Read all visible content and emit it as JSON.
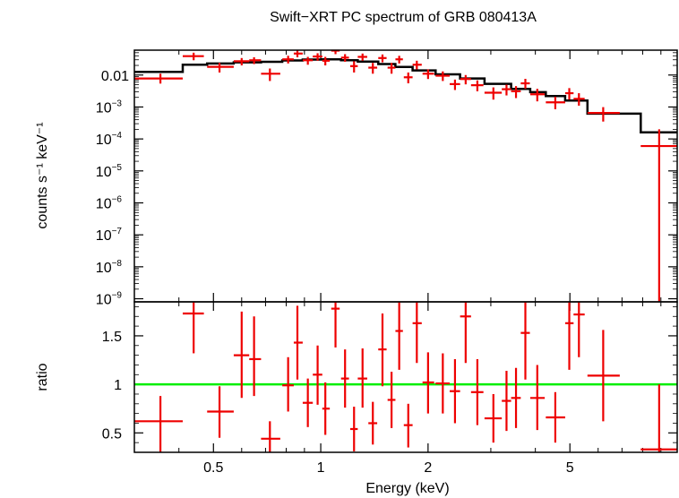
{
  "chart_data": [
    {
      "type": "scatter",
      "title": "Swift−XRT PC spectrum of GRB 080413A",
      "xlabel": "Energy (keV)",
      "ylabel": "counts s⁻¹ keV⁻¹",
      "xscale": "log",
      "yscale": "log",
      "xlim": [
        0.3,
        10
      ],
      "ylim": [
        8e-10,
        0.06
      ],
      "yticks": [
        {
          "v": 0.01,
          "label": "0.01"
        },
        {
          "v": 0.001,
          "b": "10",
          "e": "−3"
        },
        {
          "v": 0.0001,
          "b": "10",
          "e": "−4"
        },
        {
          "v": 1e-05,
          "b": "10",
          "e": "−5"
        },
        {
          "v": 1e-06,
          "b": "10",
          "e": "−6"
        },
        {
          "v": 1e-07,
          "b": "10",
          "e": "−7"
        },
        {
          "v": 1e-08,
          "b": "10",
          "e": "−8"
        },
        {
          "v": 1e-09,
          "b": "10",
          "e": "−9"
        }
      ],
      "series": [
        {
          "kind": "data",
          "color": "#ee0000",
          "points": [
            {
              "x": 0.355,
              "y": 0.0078,
              "xl": 0.3,
              "xh": 0.41,
              "yl": 0.0054,
              "yh": 0.011
            },
            {
              "x": 0.44,
              "y": 0.039,
              "xl": 0.41,
              "xh": 0.47,
              "yl": 0.029,
              "yh": 0.05
            },
            {
              "x": 0.52,
              "y": 0.018,
              "xl": 0.48,
              "xh": 0.57,
              "yl": 0.012,
              "yh": 0.024
            },
            {
              "x": 0.6,
              "y": 0.027,
              "xl": 0.57,
              "xh": 0.63,
              "yl": 0.02,
              "yh": 0.034
            },
            {
              "x": 0.65,
              "y": 0.029,
              "xl": 0.63,
              "xh": 0.68,
              "yl": 0.022,
              "yh": 0.036
            },
            {
              "x": 0.72,
              "y": 0.011,
              "xl": 0.68,
              "xh": 0.77,
              "yl": 0.0065,
              "yh": 0.016
            },
            {
              "x": 0.81,
              "y": 0.031,
              "xl": 0.78,
              "xh": 0.84,
              "yl": 0.023,
              "yh": 0.04
            },
            {
              "x": 0.86,
              "y": 0.047,
              "xl": 0.84,
              "xh": 0.89,
              "yl": 0.036,
              "yh": 0.058
            },
            {
              "x": 0.92,
              "y": 0.029,
              "xl": 0.89,
              "xh": 0.95,
              "yl": 0.021,
              "yh": 0.037
            },
            {
              "x": 0.98,
              "y": 0.038,
              "xl": 0.95,
              "xh": 1.01,
              "yl": 0.028,
              "yh": 0.048
            },
            {
              "x": 1.03,
              "y": 0.028,
              "xl": 1.01,
              "xh": 1.06,
              "yl": 0.02,
              "yh": 0.037
            },
            {
              "x": 1.1,
              "y": 0.058,
              "xl": 1.07,
              "xh": 1.13,
              "yl": 0.045,
              "yh": 0.06
            },
            {
              "x": 1.17,
              "y": 0.035,
              "xl": 1.14,
              "xh": 1.2,
              "yl": 0.026,
              "yh": 0.045
            },
            {
              "x": 1.24,
              "y": 0.019,
              "xl": 1.21,
              "xh": 1.27,
              "yl": 0.012,
              "yh": 0.027
            },
            {
              "x": 1.31,
              "y": 0.037,
              "xl": 1.27,
              "xh": 1.35,
              "yl": 0.028,
              "yh": 0.047
            },
            {
              "x": 1.4,
              "y": 0.017,
              "xl": 1.36,
              "xh": 1.44,
              "yl": 0.011,
              "yh": 0.024
            },
            {
              "x": 1.49,
              "y": 0.034,
              "xl": 1.45,
              "xh": 1.53,
              "yl": 0.025,
              "yh": 0.044
            },
            {
              "x": 1.58,
              "y": 0.017,
              "xl": 1.54,
              "xh": 1.62,
              "yl": 0.011,
              "yh": 0.024
            },
            {
              "x": 1.66,
              "y": 0.031,
              "xl": 1.62,
              "xh": 1.7,
              "yl": 0.023,
              "yh": 0.04
            },
            {
              "x": 1.76,
              "y": 0.0085,
              "xl": 1.71,
              "xh": 1.81,
              "yl": 0.0055,
              "yh": 0.012
            },
            {
              "x": 1.86,
              "y": 0.021,
              "xl": 1.81,
              "xh": 1.92,
              "yl": 0.015,
              "yh": 0.028
            },
            {
              "x": 2.0,
              "y": 0.011,
              "xl": 1.93,
              "xh": 2.08,
              "yl": 0.0075,
              "yh": 0.015
            },
            {
              "x": 2.2,
              "y": 0.0095,
              "xl": 2.1,
              "xh": 2.3,
              "yl": 0.0065,
              "yh": 0.013
            },
            {
              "x": 2.38,
              "y": 0.0052,
              "xl": 2.3,
              "xh": 2.46,
              "yl": 0.0034,
              "yh": 0.0072
            },
            {
              "x": 2.55,
              "y": 0.0075,
              "xl": 2.46,
              "xh": 2.64,
              "yl": 0.0051,
              "yh": 0.01
            },
            {
              "x": 2.75,
              "y": 0.0048,
              "xl": 2.64,
              "xh": 2.86,
              "yl": 0.0031,
              "yh": 0.0068
            },
            {
              "x": 3.05,
              "y": 0.0028,
              "xl": 2.88,
              "xh": 3.22,
              "yl": 0.0017,
              "yh": 0.0041
            },
            {
              "x": 3.32,
              "y": 0.0036,
              "xl": 3.22,
              "xh": 3.42,
              "yl": 0.0023,
              "yh": 0.005
            },
            {
              "x": 3.53,
              "y": 0.0031,
              "xl": 3.42,
              "xh": 3.64,
              "yl": 0.0019,
              "yh": 0.0045
            },
            {
              "x": 3.75,
              "y": 0.0055,
              "xl": 3.64,
              "xh": 3.86,
              "yl": 0.0037,
              "yh": 0.0076
            },
            {
              "x": 4.05,
              "y": 0.0025,
              "xl": 3.87,
              "xh": 4.25,
              "yl": 0.0015,
              "yh": 0.0037
            },
            {
              "x": 4.55,
              "y": 0.0014,
              "xl": 4.28,
              "xh": 4.85,
              "yl": 0.00085,
              "yh": 0.0021
            },
            {
              "x": 4.98,
              "y": 0.0027,
              "xl": 4.85,
              "xh": 5.12,
              "yl": 0.0017,
              "yh": 0.0039
            },
            {
              "x": 5.3,
              "y": 0.0018,
              "xl": 5.12,
              "xh": 5.5,
              "yl": 0.0011,
              "yh": 0.0027
            },
            {
              "x": 6.2,
              "y": 0.00065,
              "xl": 5.6,
              "xh": 6.9,
              "yl": 0.00035,
              "yh": 0.00099
            },
            {
              "x": 8.9,
              "y": 6e-05,
              "xl": 7.9,
              "xh": 10.0,
              "yl": 8e-10,
              "yh": 0.0002
            }
          ]
        },
        {
          "kind": "model",
          "color": "#000000",
          "steps": [
            {
              "x0": 0.3,
              "x1": 0.41,
              "y": 0.0125
            },
            {
              "x0": 0.41,
              "x1": 0.48,
              "y": 0.021
            },
            {
              "x0": 0.48,
              "x1": 0.57,
              "y": 0.023
            },
            {
              "x0": 0.57,
              "x1": 0.68,
              "y": 0.025
            },
            {
              "x0": 0.68,
              "x1": 0.78,
              "y": 0.026
            },
            {
              "x0": 0.78,
              "x1": 0.89,
              "y": 0.0285
            },
            {
              "x0": 0.89,
              "x1": 1.01,
              "y": 0.0305
            },
            {
              "x0": 1.01,
              "x1": 1.14,
              "y": 0.031
            },
            {
              "x0": 1.14,
              "x1": 1.27,
              "y": 0.029
            },
            {
              "x0": 1.27,
              "x1": 1.45,
              "y": 0.0265
            },
            {
              "x0": 1.45,
              "x1": 1.62,
              "y": 0.022
            },
            {
              "x0": 1.62,
              "x1": 1.81,
              "y": 0.018
            },
            {
              "x0": 1.81,
              "x1": 2.1,
              "y": 0.014
            },
            {
              "x0": 2.1,
              "x1": 2.46,
              "y": 0.0105
            },
            {
              "x0": 2.46,
              "x1": 2.88,
              "y": 0.0078
            },
            {
              "x0": 2.88,
              "x1": 3.42,
              "y": 0.0053
            },
            {
              "x0": 3.42,
              "x1": 3.87,
              "y": 0.0037
            },
            {
              "x0": 3.87,
              "x1": 4.28,
              "y": 0.0029
            },
            {
              "x0": 4.28,
              "x1": 4.85,
              "y": 0.0022
            },
            {
              "x0": 4.85,
              "x1": 5.6,
              "y": 0.0016
            },
            {
              "x0": 5.6,
              "x1": 7.9,
              "y": 0.00062
            },
            {
              "x0": 7.9,
              "x1": 10.0,
              "y": 0.00016
            }
          ]
        }
      ]
    },
    {
      "type": "scatter",
      "xlabel": "Energy (keV)",
      "ylabel": "ratio",
      "xscale": "log",
      "xlim": [
        0.3,
        10
      ],
      "ylim": [
        0.3,
        1.85
      ],
      "xticks": [
        {
          "v": 0.5,
          "label": "0.5"
        },
        {
          "v": 1,
          "label": "1"
        },
        {
          "v": 2,
          "label": "2"
        },
        {
          "v": 5,
          "label": "5"
        }
      ],
      "yticks": [
        {
          "v": 0.5,
          "label": "0.5"
        },
        {
          "v": 1,
          "label": "1"
        },
        {
          "v": 1.5,
          "label": "1.5"
        }
      ],
      "reference_line": {
        "y": 1,
        "color": "#00ee00"
      },
      "series": [
        {
          "kind": "data",
          "color": "#ee0000",
          "points": [
            {
              "x": 0.355,
              "y": 0.62,
              "xl": 0.3,
              "xh": 0.41,
              "yl": 0.3,
              "yh": 0.88
            },
            {
              "x": 0.44,
              "y": 1.73,
              "xl": 0.41,
              "xh": 0.47,
              "yl": 1.32,
              "yh": 1.85
            },
            {
              "x": 0.52,
              "y": 0.72,
              "xl": 0.48,
              "xh": 0.57,
              "yl": 0.45,
              "yh": 0.98
            },
            {
              "x": 0.6,
              "y": 1.3,
              "xl": 0.57,
              "xh": 0.63,
              "yl": 0.86,
              "yh": 1.75
            },
            {
              "x": 0.65,
              "y": 1.26,
              "xl": 0.63,
              "xh": 0.68,
              "yl": 0.88,
              "yh": 1.7
            },
            {
              "x": 0.72,
              "y": 0.44,
              "xl": 0.68,
              "xh": 0.77,
              "yl": 0.3,
              "yh": 0.62
            },
            {
              "x": 0.81,
              "y": 0.99,
              "xl": 0.78,
              "xh": 0.84,
              "yl": 0.72,
              "yh": 1.28
            },
            {
              "x": 0.86,
              "y": 1.43,
              "xl": 0.84,
              "xh": 0.89,
              "yl": 1.05,
              "yh": 1.81
            },
            {
              "x": 0.92,
              "y": 0.81,
              "xl": 0.89,
              "xh": 0.95,
              "yl": 0.56,
              "yh": 1.06
            },
            {
              "x": 0.98,
              "y": 1.1,
              "xl": 0.95,
              "xh": 1.01,
              "yl": 0.79,
              "yh": 1.4
            },
            {
              "x": 1.03,
              "y": 0.75,
              "xl": 1.01,
              "xh": 1.06,
              "yl": 0.48,
              "yh": 1.02
            },
            {
              "x": 1.1,
              "y": 1.78,
              "xl": 1.07,
              "xh": 1.13,
              "yl": 1.38,
              "yh": 1.85
            },
            {
              "x": 1.17,
              "y": 1.06,
              "xl": 1.14,
              "xh": 1.2,
              "yl": 0.76,
              "yh": 1.36
            },
            {
              "x": 1.24,
              "y": 0.54,
              "xl": 1.21,
              "xh": 1.27,
              "yl": 0.31,
              "yh": 0.77
            },
            {
              "x": 1.31,
              "y": 1.06,
              "xl": 1.27,
              "xh": 1.35,
              "yl": 0.76,
              "yh": 1.37
            },
            {
              "x": 1.4,
              "y": 0.6,
              "xl": 1.36,
              "xh": 1.44,
              "yl": 0.38,
              "yh": 0.82
            },
            {
              "x": 1.49,
              "y": 1.36,
              "xl": 1.45,
              "xh": 1.53,
              "yl": 0.98,
              "yh": 1.73
            },
            {
              "x": 1.58,
              "y": 0.84,
              "xl": 1.54,
              "xh": 1.62,
              "yl": 0.55,
              "yh": 1.13
            },
            {
              "x": 1.66,
              "y": 1.55,
              "xl": 1.62,
              "xh": 1.7,
              "yl": 1.15,
              "yh": 1.85
            },
            {
              "x": 1.76,
              "y": 0.58,
              "xl": 1.71,
              "xh": 1.81,
              "yl": 0.35,
              "yh": 0.8
            },
            {
              "x": 1.86,
              "y": 1.63,
              "xl": 1.81,
              "xh": 1.92,
              "yl": 1.22,
              "yh": 1.85
            },
            {
              "x": 2.0,
              "y": 1.02,
              "xl": 1.93,
              "xh": 2.08,
              "yl": 0.7,
              "yh": 1.33
            },
            {
              "x": 2.2,
              "y": 1.01,
              "xl": 2.1,
              "xh": 2.3,
              "yl": 0.7,
              "yh": 1.32
            },
            {
              "x": 2.38,
              "y": 0.93,
              "xl": 2.3,
              "xh": 2.46,
              "yl": 0.6,
              "yh": 1.26
            },
            {
              "x": 2.55,
              "y": 1.7,
              "xl": 2.46,
              "xh": 2.64,
              "yl": 1.22,
              "yh": 1.85
            },
            {
              "x": 2.75,
              "y": 0.92,
              "xl": 2.64,
              "xh": 2.86,
              "yl": 0.58,
              "yh": 1.26
            },
            {
              "x": 3.05,
              "y": 0.65,
              "xl": 2.88,
              "xh": 3.22,
              "yl": 0.4,
              "yh": 0.9
            },
            {
              "x": 3.32,
              "y": 0.83,
              "xl": 3.22,
              "xh": 3.42,
              "yl": 0.52,
              "yh": 1.14
            },
            {
              "x": 3.53,
              "y": 0.86,
              "xl": 3.42,
              "xh": 3.64,
              "yl": 0.55,
              "yh": 1.17
            },
            {
              "x": 3.75,
              "y": 1.53,
              "xl": 3.64,
              "xh": 3.86,
              "yl": 1.05,
              "yh": 1.85
            },
            {
              "x": 4.05,
              "y": 0.86,
              "xl": 3.87,
              "xh": 4.25,
              "yl": 0.53,
              "yh": 1.2
            },
            {
              "x": 4.55,
              "y": 0.66,
              "xl": 4.28,
              "xh": 4.85,
              "yl": 0.4,
              "yh": 0.92
            },
            {
              "x": 4.98,
              "y": 1.63,
              "xl": 4.85,
              "xh": 5.12,
              "yl": 1.15,
              "yh": 1.85
            },
            {
              "x": 5.3,
              "y": 1.72,
              "xl": 5.12,
              "xh": 5.5,
              "yl": 1.28,
              "yh": 1.85
            },
            {
              "x": 6.2,
              "y": 1.09,
              "xl": 5.6,
              "xh": 6.9,
              "yl": 0.62,
              "yh": 1.56
            },
            {
              "x": 8.9,
              "y": 0.33,
              "xl": 7.9,
              "xh": 10.0,
              "yl": 0.3,
              "yh": 1.0
            }
          ]
        }
      ]
    }
  ]
}
